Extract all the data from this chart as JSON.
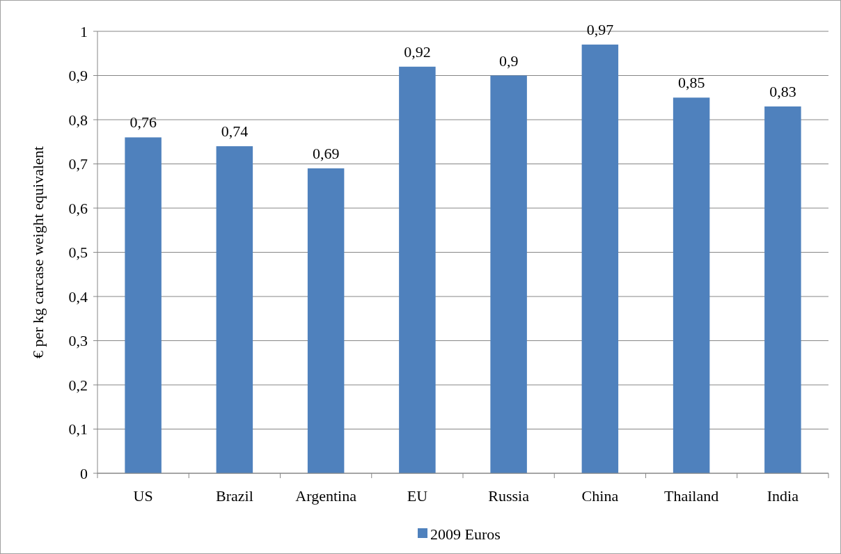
{
  "chart_data": {
    "type": "bar",
    "ylabel": "€ per kg carcase weight equivalent",
    "categories": [
      "US",
      "Brazil",
      "Argentina",
      "EU",
      "Russia",
      "China",
      "Thailand",
      "India"
    ],
    "series": [
      {
        "name": "2009 Euros",
        "color": "#4f81bd",
        "values": [
          0.76,
          0.74,
          0.69,
          0.92,
          0.9,
          0.97,
          0.85,
          0.83
        ],
        "value_labels": [
          "0,76",
          "0,74",
          "0,69",
          "0,92",
          "0,9",
          "0,97",
          "0,85",
          "0,83"
        ]
      }
    ],
    "ylim": [
      0,
      1
    ],
    "yticks": [
      0,
      {
        "value": 0.1,
        "label": "0,1"
      },
      {
        "value": 0.2,
        "label": "0,2"
      },
      {
        "value": 0.3,
        "label": "0,3"
      },
      {
        "value": 0.4,
        "label": "0,4"
      },
      {
        "value": 0.5,
        "label": "0,5"
      },
      {
        "value": 0.6,
        "label": "0,6"
      },
      {
        "value": 0.7,
        "label": "0,7"
      },
      {
        "value": 0.8,
        "label": "0,8"
      },
      {
        "value": 0.9,
        "label": "0,9"
      },
      1
    ],
    "grid": "y",
    "legend": "bottom"
  }
}
